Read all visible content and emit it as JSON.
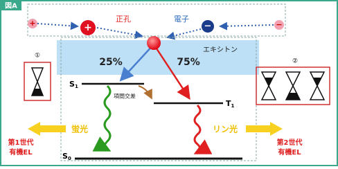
{
  "header": {
    "tag": "図A"
  },
  "carriers": {
    "hole_sign": "+",
    "hole_label": "正孔",
    "electron_sign": "−",
    "electron_label": "電子",
    "left_sign": "+",
    "right_sign": "−"
  },
  "exciton": {
    "label": "エキシトン",
    "singlet_share": "25%",
    "triplet_share": "75%"
  },
  "levels": {
    "s1": {
      "letter": "S",
      "sub": "1"
    },
    "t1": {
      "letter": "T",
      "sub": "1"
    },
    "s0": {
      "letter": "S",
      "sub": "0"
    },
    "crossing": "項間交差"
  },
  "emission": {
    "fluorescence": "蛍光",
    "phosphorescence": "リン光"
  },
  "generations": {
    "first": {
      "mark": "①",
      "line1": "第1世代",
      "line2": "有機EL"
    },
    "second": {
      "mark": "②",
      "line1": "第2世代",
      "line2": "有機EL"
    }
  }
}
